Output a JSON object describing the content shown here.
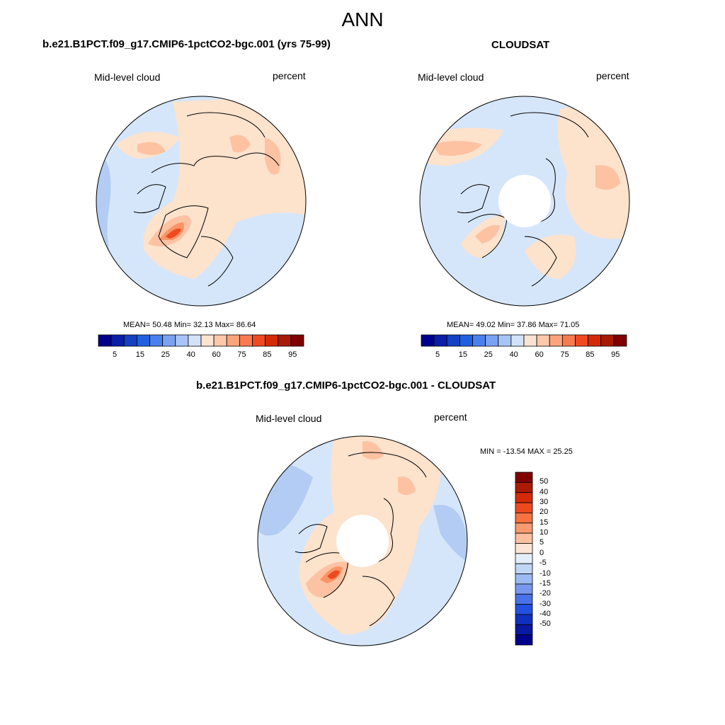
{
  "figure": {
    "title": "ANN"
  },
  "panels": [
    {
      "title": "b.e21.B1PCT.f09_g17.CMIP6-1pctCO2-bgc.001 (yrs 75-99)",
      "left_label": "Mid-level cloud",
      "right_label": "percent",
      "stats": "MEAN=  50.48  Min=  32.13  Max=  86.64"
    },
    {
      "title": "CLOUDSAT",
      "left_label": "Mid-level cloud",
      "right_label": "percent",
      "stats": "MEAN=  49.02  Min=  37.86  Max=  71.05"
    },
    {
      "title": "b.e21.B1PCT.f09_g17.CMIP6-1pctCO2-bgc.001 - CLOUDSAT",
      "left_label": "Mid-level cloud",
      "right_label": "percent",
      "stats": "MIN = -13.54 MAX =  25.25"
    }
  ],
  "colorbar_abs": {
    "colors": [
      "#00008c",
      "#0a1ea6",
      "#1440c4",
      "#2060e0",
      "#4a80ee",
      "#7aa2f2",
      "#a8c4f6",
      "#d2e2fa",
      "#fde4d2",
      "#fcc8aa",
      "#fba47c",
      "#f87a50",
      "#f04a22",
      "#d42a0a",
      "#a81a04",
      "#800000"
    ],
    "tick_labels": [
      "5",
      "15",
      "25",
      "40",
      "60",
      "75",
      "85",
      "95"
    ]
  },
  "colorbar_diff": {
    "colors": [
      "#800000",
      "#ac1a04",
      "#d42a0a",
      "#ee4a20",
      "#f87240",
      "#fa9a70",
      "#fcc0a0",
      "#fde4d4",
      "#e4eefa",
      "#c0d6f6",
      "#9cbaf2",
      "#7898ee",
      "#4a72e8",
      "#2450e0",
      "#1030c0",
      "#0818a0",
      "#00008c"
    ],
    "tick_labels": [
      "50",
      "40",
      "30",
      "20",
      "15",
      "10",
      "5",
      "0",
      "-5",
      "-10",
      "-15",
      "-20",
      "-30",
      "-40",
      "-50"
    ]
  },
  "map_colors": {
    "lt_blue": "#d6e6fa",
    "mid_blue": "#b2ccf4",
    "peach": "#fde2cc",
    "salmon": "#fcc2a2",
    "orange": "#fa9466",
    "red": "#ee4a20"
  }
}
